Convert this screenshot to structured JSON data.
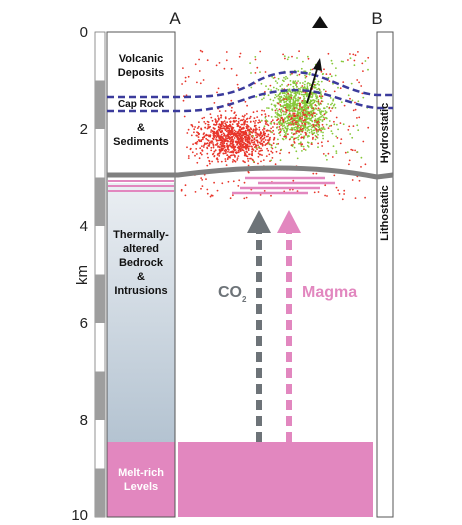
{
  "axis": {
    "unit": "km",
    "ticks": [
      "0",
      "2",
      "4",
      "6",
      "8",
      "10"
    ]
  },
  "columns": {
    "left_heading": "A",
    "right_heading": "B"
  },
  "layers": {
    "volcanic_line1": "Volcanic",
    "volcanic_line2": "Deposits",
    "cap_rock": "Cap Rock",
    "sediments_line1": "&",
    "sediments_line2": "Sediments",
    "bedrock_line1": "Thermally-",
    "bedrock_line2": "altered",
    "bedrock_line3": "Bedrock",
    "bedrock_line4": "&",
    "bedrock_line5": "Intrusions",
    "melt_line1": "Melt-rich",
    "melt_line2": "Levels"
  },
  "pressure": {
    "upper": "Hydrostatic",
    "lower": "Lithostatic"
  },
  "flows": {
    "co2_main": "CO",
    "co2_sub": "2",
    "magma": "Magma"
  },
  "colors": {
    "co2_arrow": "#6d7378",
    "magma_pink": "#e287bf",
    "cap_rock_line": "#3b3b9c",
    "boundary_gray": "#7f7f7f",
    "bedrock_top": "#ebeff3",
    "bedrock_bottom": "#b7c6d3",
    "scatter_red": "#e8352a",
    "scatter_green": "#86c83a"
  },
  "icons": {
    "vent_marker": "triangle-up-icon"
  }
}
